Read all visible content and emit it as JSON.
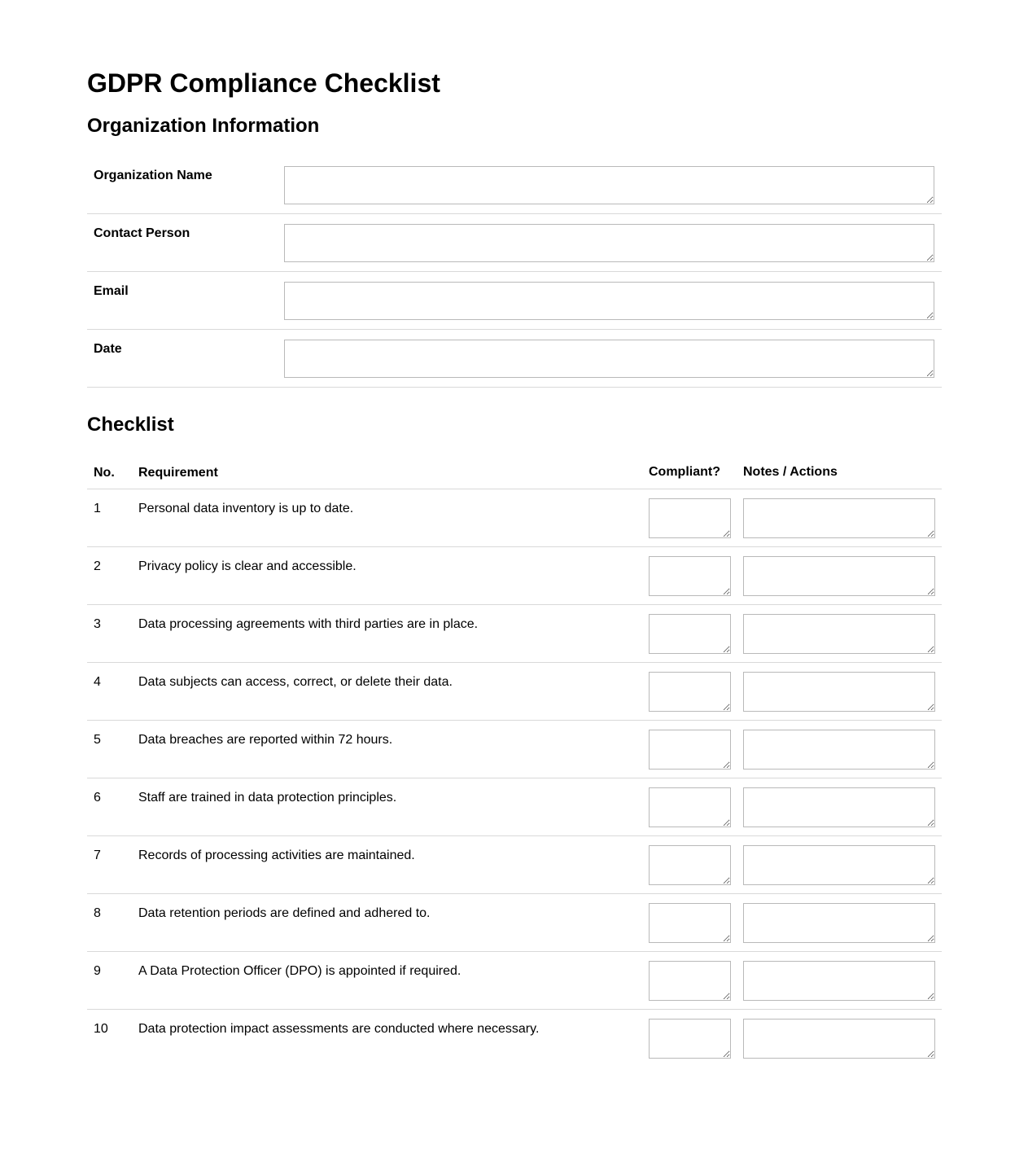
{
  "page": {
    "title": "GDPR Compliance Checklist"
  },
  "org_info": {
    "heading": "Organization Information",
    "fields": [
      {
        "label": "Organization Name",
        "value": ""
      },
      {
        "label": "Contact Person",
        "value": ""
      },
      {
        "label": "Email",
        "value": ""
      },
      {
        "label": "Date",
        "value": ""
      }
    ]
  },
  "checklist": {
    "heading": "Checklist",
    "columns": {
      "no": "No.",
      "requirement": "Requirement",
      "compliant": "Compliant?",
      "notes": "Notes / Actions"
    },
    "rows": [
      {
        "no": "1",
        "requirement": "Personal data inventory is up to date.",
        "compliant": "",
        "notes": ""
      },
      {
        "no": "2",
        "requirement": "Privacy policy is clear and accessible.",
        "compliant": "",
        "notes": ""
      },
      {
        "no": "3",
        "requirement": "Data processing agreements with third parties are in place.",
        "compliant": "",
        "notes": ""
      },
      {
        "no": "4",
        "requirement": "Data subjects can access, correct, or delete their data.",
        "compliant": "",
        "notes": ""
      },
      {
        "no": "5",
        "requirement": "Data breaches are reported within 72 hours.",
        "compliant": "",
        "notes": ""
      },
      {
        "no": "6",
        "requirement": "Staff are trained in data protection principles.",
        "compliant": "",
        "notes": ""
      },
      {
        "no": "7",
        "requirement": "Records of processing activities are maintained.",
        "compliant": "",
        "notes": ""
      },
      {
        "no": "8",
        "requirement": "Data retention periods are defined and adhered to.",
        "compliant": "",
        "notes": ""
      },
      {
        "no": "9",
        "requirement": "A Data Protection Officer (DPO) is appointed if required.",
        "compliant": "",
        "notes": ""
      },
      {
        "no": "10",
        "requirement": "Data protection impact assessments are conducted where necessary.",
        "compliant": "",
        "notes": ""
      }
    ]
  },
  "colors": {
    "divider": "#d9d9d9",
    "input_border": "#b9b9b9",
    "text": "#000000",
    "background": "#ffffff"
  }
}
